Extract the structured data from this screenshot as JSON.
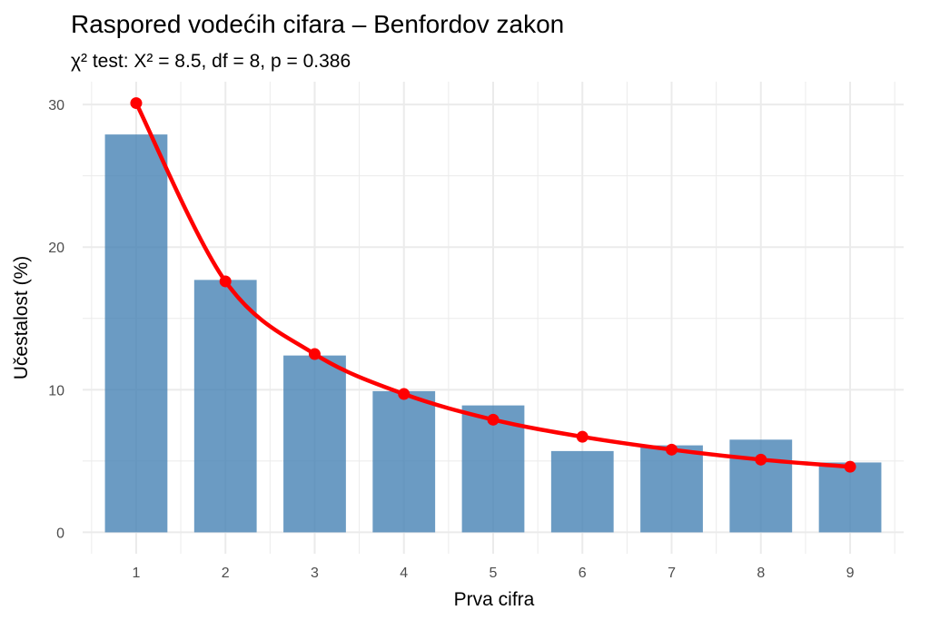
{
  "chart_data": {
    "type": "bar",
    "title": "Raspored vodećih cifara – Benfordov zakon",
    "subtitle": "χ² test: X² = 8.5, df = 8, p = 0.386",
    "xlabel": "Prva cifra",
    "ylabel": "Učestalost (%)",
    "categories": [
      "1",
      "2",
      "3",
      "4",
      "5",
      "6",
      "7",
      "8",
      "9"
    ],
    "series": [
      {
        "type": "bar",
        "values": [
          27.9,
          17.7,
          12.4,
          9.9,
          8.9,
          5.7,
          6.1,
          6.5,
          4.9
        ]
      },
      {
        "type": "line",
        "values": [
          30.1,
          17.6,
          12.5,
          9.7,
          7.9,
          6.7,
          5.8,
          5.1,
          4.6
        ]
      }
    ],
    "y_ticks": [
      0,
      10,
      20,
      30
    ],
    "ylim": [
      -1.5,
      31.6
    ],
    "grid": true,
    "colors": {
      "bar": "#4682b4",
      "line": "#ff0000",
      "grid": "#ebebeb"
    }
  }
}
